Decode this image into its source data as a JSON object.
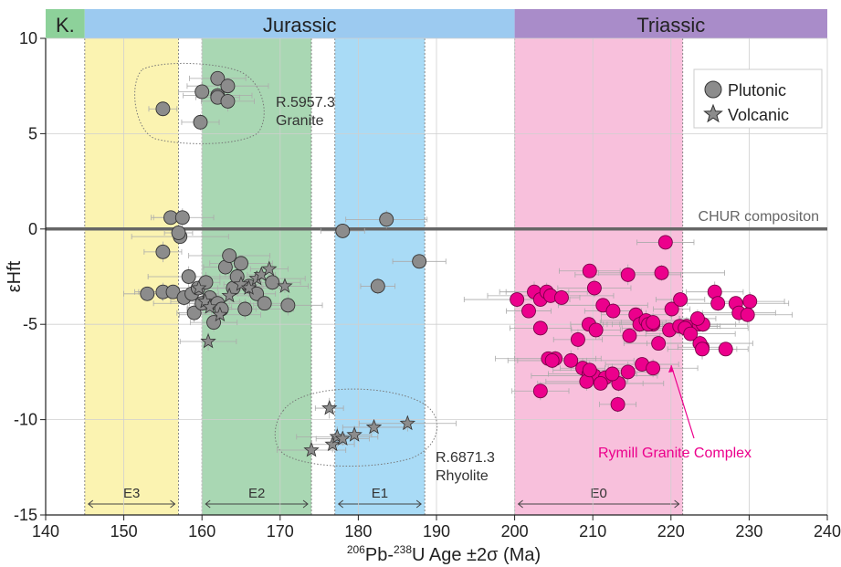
{
  "chart_data": {
    "type": "scatter",
    "xlabel_pre": "",
    "xlabel_sup1": "206",
    "xlabel_mid": "Pb-",
    "xlabel_sup2": "238",
    "xlabel_post": "U Age ±2σ (Ma)",
    "ylabel": "εHft",
    "xlim": [
      140,
      240
    ],
    "ylim": [
      -15,
      10
    ],
    "x_ticks": [
      "140",
      "150",
      "160",
      "170",
      "180",
      "190",
      "200",
      "210",
      "220",
      "230",
      "240"
    ],
    "y_ticks": [
      "10",
      "5",
      "0",
      "-5",
      "-10",
      "-15"
    ],
    "grid": true,
    "periods": [
      {
        "label": "K.",
        "start": 140,
        "end": 145,
        "color": "#8dd19a"
      },
      {
        "label": "Jurassic",
        "start": 145,
        "end": 200,
        "color": "#9ccaf0"
      },
      {
        "label": "Triassic",
        "start": 200,
        "end": 240,
        "color": "#a98cc9"
      }
    ],
    "event_bands": [
      {
        "label": "E3",
        "start": 145,
        "end": 157,
        "color": "#fbf3b1"
      },
      {
        "label": "E2",
        "start": 160,
        "end": 174,
        "color": "#a9d7b3"
      },
      {
        "label": "E1",
        "start": 177,
        "end": 188.5,
        "color": "#a9dbf6"
      },
      {
        "label": "E0",
        "start": 200,
        "end": 221.5,
        "color": "#f8c0dc"
      }
    ],
    "chur_label": "CHUR compositon",
    "legend": [
      {
        "name": "Plutonic",
        "marker": "circle"
      },
      {
        "name": "Volcanic",
        "marker": "star"
      }
    ],
    "legend_position": "top-right",
    "annotations": [
      {
        "line1": "R.5957.3",
        "line2": "Granite"
      },
      {
        "line1": "R.6871.3",
        "line2": "Rhyolite"
      },
      {
        "line1": "Rymill Granite Complex",
        "line2": ""
      }
    ],
    "series": [
      {
        "name": "Plutonic",
        "marker": "circle",
        "color": "#8c8c8c",
        "x": [
          155,
          159.8,
          160,
          162,
          162,
          162,
          163.3,
          163.3,
          156,
          157.5,
          157.2,
          157,
          155,
          153,
          155,
          156.3,
          157.7,
          158.3,
          158.7,
          159,
          159.5,
          160,
          160.5,
          161,
          161.5,
          162,
          162.5,
          163,
          163.5,
          164,
          164.5,
          165,
          165.5,
          166,
          167,
          168,
          169,
          171,
          178,
          183.6,
          187.8,
          182.5
        ],
        "y": [
          6.3,
          5.6,
          7.2,
          7.9,
          7.0,
          6.9,
          7.5,
          6.7,
          0.6,
          0.6,
          -0.4,
          -0.2,
          -1.2,
          -3.4,
          -3.3,
          -3.3,
          -3.6,
          -2.5,
          -3.4,
          -4.4,
          -3.1,
          -3.9,
          -2.8,
          -3.6,
          -4.9,
          -3.9,
          -4.2,
          -2.0,
          -1.4,
          -3.1,
          -2.5,
          -1.8,
          -4.2,
          -3.0,
          -3.4,
          -3.9,
          -2.8,
          -4.0,
          -0.1,
          0.5,
          -1.7,
          -3.0
        ]
      },
      {
        "name": "Volcanic",
        "marker": "star",
        "color": "#8c8c8c",
        "x": [
          159.6,
          160.4,
          161,
          162.3,
          163.5,
          165,
          166,
          167,
          167.6,
          168.6,
          170.6,
          160.8,
          174,
          176.7,
          177.3,
          178,
          179.5,
          182,
          186.3,
          176.3
        ],
        "y": [
          -3.1,
          -3.8,
          -4.1,
          -4.5,
          -3.5,
          -2.9,
          -3.1,
          -2.6,
          -2.4,
          -2.1,
          -3.0,
          -5.9,
          -11.6,
          -11.3,
          -10.9,
          -11.0,
          -10.8,
          -10.4,
          -10.2,
          -9.4
        ]
      },
      {
        "name": "Rymill Granite Complex",
        "marker": "circle",
        "color": "#ec008c",
        "x": [
          200.3,
          202.5,
          203.3,
          204.1,
          204.6,
          206,
          208.1,
          209.6,
          210.2,
          211.3,
          212.6,
          214.5,
          215.5,
          216.5,
          217.7,
          218.8,
          220.1,
          221.2,
          222,
          223.6,
          224.1,
          225.6,
          228.3,
          230.1,
          201.8,
          205.2,
          207.2,
          209.5,
          210.4,
          214.7,
          216,
          216.8,
          217.1,
          217.7,
          218.4,
          219.8,
          221.1,
          221.8,
          223.4,
          224,
          226,
          228.7,
          229.8,
          203.3,
          204.3,
          204.8,
          208.7,
          209.5,
          210.2,
          211.6,
          213.3,
          214.5,
          216.3,
          217.7,
          219.3,
          223.7,
          224,
          227,
          209.2,
          211,
          213.2,
          212.5,
          203.3,
          209.6,
          222.5
        ],
        "y": [
          -3.7,
          -3.3,
          -3.7,
          -3.3,
          -3.5,
          -3.6,
          -5.8,
          -2.2,
          -3.1,
          -4.0,
          -4.3,
          -2.4,
          -4.5,
          -4.9,
          -5.0,
          -2.3,
          -4.2,
          -3.7,
          -5.1,
          -5.0,
          -5.0,
          -3.3,
          -3.9,
          -3.8,
          -4.3,
          -6.8,
          -6.9,
          -5.0,
          -5.3,
          -5.6,
          -5.0,
          -4.8,
          -5.0,
          -4.9,
          -6.0,
          -5.3,
          -5.1,
          -5.2,
          -4.7,
          -6.2,
          -3.9,
          -4.4,
          -4.5,
          -8.5,
          -6.8,
          -6.9,
          -7.3,
          -7.6,
          -7.7,
          -7.8,
          -8.1,
          -7.5,
          -7.1,
          -7.3,
          -0.7,
          -6.0,
          -6.3,
          -6.3,
          -8.0,
          -8.1,
          -9.2,
          -7.6,
          -5.2,
          -7.4,
          -5.5
        ]
      }
    ]
  }
}
